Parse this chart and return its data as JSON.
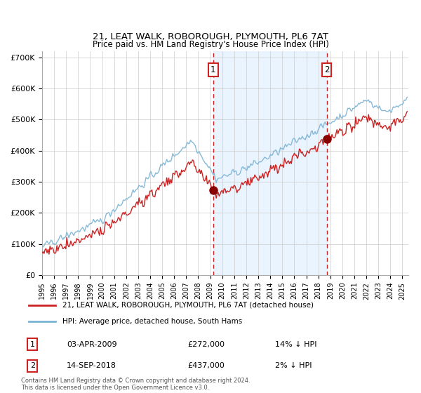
{
  "title": "21, LEAT WALK, ROBOROUGH, PLYMOUTH, PL6 7AT",
  "subtitle": "Price paid vs. HM Land Registry's House Price Index (HPI)",
  "legend_line1": "21, LEAT WALK, ROBOROUGH, PLYMOUTH, PL6 7AT (detached house)",
  "legend_line2": "HPI: Average price, detached house, South Hams",
  "sale1_date": "03-APR-2009",
  "sale1_price": 272000,
  "sale1_label": "14% ↓ HPI",
  "sale2_date": "14-SEP-2018",
  "sale2_price": 437000,
  "sale2_label": "2% ↓ HPI",
  "sale1_x": 2009.25,
  "sale2_x": 2018.71,
  "hpi_color": "#7ab3d4",
  "property_color": "#cc2222",
  "sale_marker_color": "#880000",
  "dashed_line_color": "#cc2222",
  "background_fill_color": "#ddeeff",
  "grid_color": "#cccccc",
  "ylim_max": 720000,
  "xlim_start": 1995.0,
  "xlim_end": 2025.5,
  "footnote": "Contains HM Land Registry data © Crown copyright and database right 2024.\nThis data is licensed under the Open Government Licence v3.0."
}
